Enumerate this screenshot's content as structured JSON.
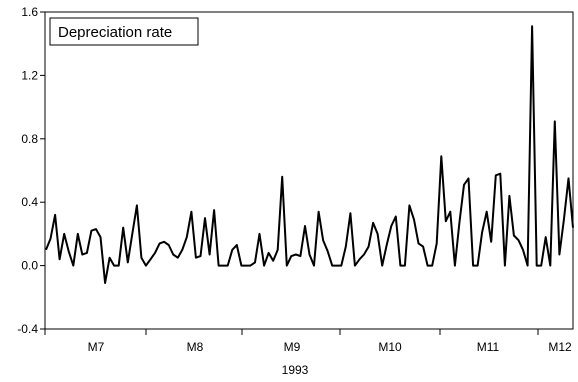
{
  "chart_data": {
    "type": "line",
    "legend": "Depreciation rate",
    "legend_position": "top-left",
    "xlabel": "1993",
    "ylabel": "",
    "ylim": [
      -0.4,
      1.6
    ],
    "yticks": [
      "1.6",
      "1.2",
      "0.8",
      "0.4",
      "0.0",
      "-0.4"
    ],
    "grid": false,
    "month_labels": [
      "M7",
      "M8",
      "M9",
      "M10",
      "M11",
      "M12"
    ],
    "series": [
      {
        "color": "#000000",
        "values": [
          0.1,
          0.17,
          0.32,
          0.04,
          0.2,
          0.09,
          0.0,
          0.2,
          0.07,
          0.08,
          0.22,
          0.23,
          0.18,
          -0.11,
          0.05,
          0.0,
          0.0,
          0.24,
          0.02,
          0.2,
          0.38,
          0.05,
          0.0,
          0.04,
          0.08,
          0.14,
          0.15,
          0.13,
          0.07,
          0.05,
          0.1,
          0.18,
          0.34,
          0.05,
          0.06,
          0.3,
          0.07,
          0.35,
          0.0,
          0.0,
          0.0,
          0.1,
          0.13,
          0.0,
          0.0,
          0.0,
          0.02,
          0.2,
          0.0,
          0.08,
          0.03,
          0.1,
          0.56,
          0.0,
          0.06,
          0.07,
          0.06,
          0.25,
          0.07,
          0.0,
          0.34,
          0.16,
          0.09,
          0.0,
          0.0,
          0.0,
          0.12,
          0.33,
          0.0,
          0.04,
          0.07,
          0.12,
          0.27,
          0.2,
          0.0,
          0.13,
          0.25,
          0.31,
          0.0,
          0.0,
          0.38,
          0.29,
          0.14,
          0.12,
          0.0,
          0.0,
          0.14,
          0.69,
          0.28,
          0.34,
          0.0,
          0.27,
          0.51,
          0.55,
          0.0,
          0.0,
          0.21,
          0.34,
          0.15,
          0.57,
          0.58,
          0.0,
          0.44,
          0.19,
          0.16,
          0.1,
          0.0,
          1.51,
          0.0,
          0.0,
          0.18,
          0.0,
          0.91,
          0.07,
          0.29,
          0.55,
          0.24
        ]
      }
    ]
  }
}
